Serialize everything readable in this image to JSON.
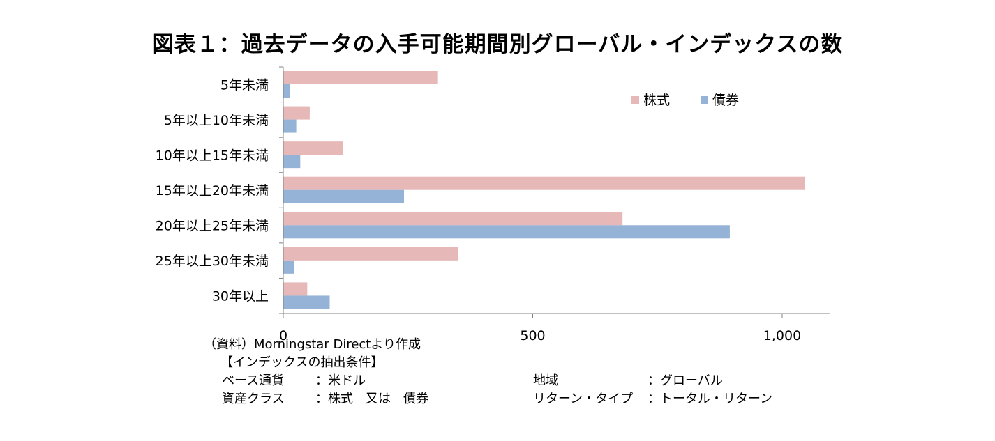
{
  "title": "図表１：過去データの入手可能期間別グローバル・インデックスの数",
  "chart_data": {
    "type": "bar",
    "orientation": "horizontal",
    "categories": [
      "5年未満",
      "5年以上10年未満",
      "10年以上15年未満",
      "15年以上20年未満",
      "20年以上25年未満",
      "25年以上30年未満",
      "30年以上"
    ],
    "series": [
      {
        "name": "株式",
        "color": "#e6b8b7",
        "values": [
          310,
          53,
          120,
          1045,
          680,
          350,
          48
        ]
      },
      {
        "name": "債券",
        "color": "#95b3d7",
        "values": [
          14,
          26,
          34,
          242,
          895,
          22,
          93
        ]
      }
    ],
    "xlim": [
      0,
      1100
    ],
    "xticks": [
      0,
      500,
      1000
    ],
    "xtick_labels": [
      "0",
      "500",
      "1,000"
    ],
    "legend_position": "top-right",
    "grid": false
  },
  "notes": {
    "source": "（資料）Morningstar Directより作成",
    "heading": "【インデックスの抽出条件】",
    "base_currency_label": "ベース通貨",
    "base_currency_value": "：米ドル",
    "asset_class_label": "資産クラス",
    "asset_class_value": "：株式　又は　債券",
    "region_label": "地域",
    "region_value": "：グローバル",
    "return_type_label": "リターン・タイプ",
    "return_type_value": "：トータル・リターン"
  }
}
